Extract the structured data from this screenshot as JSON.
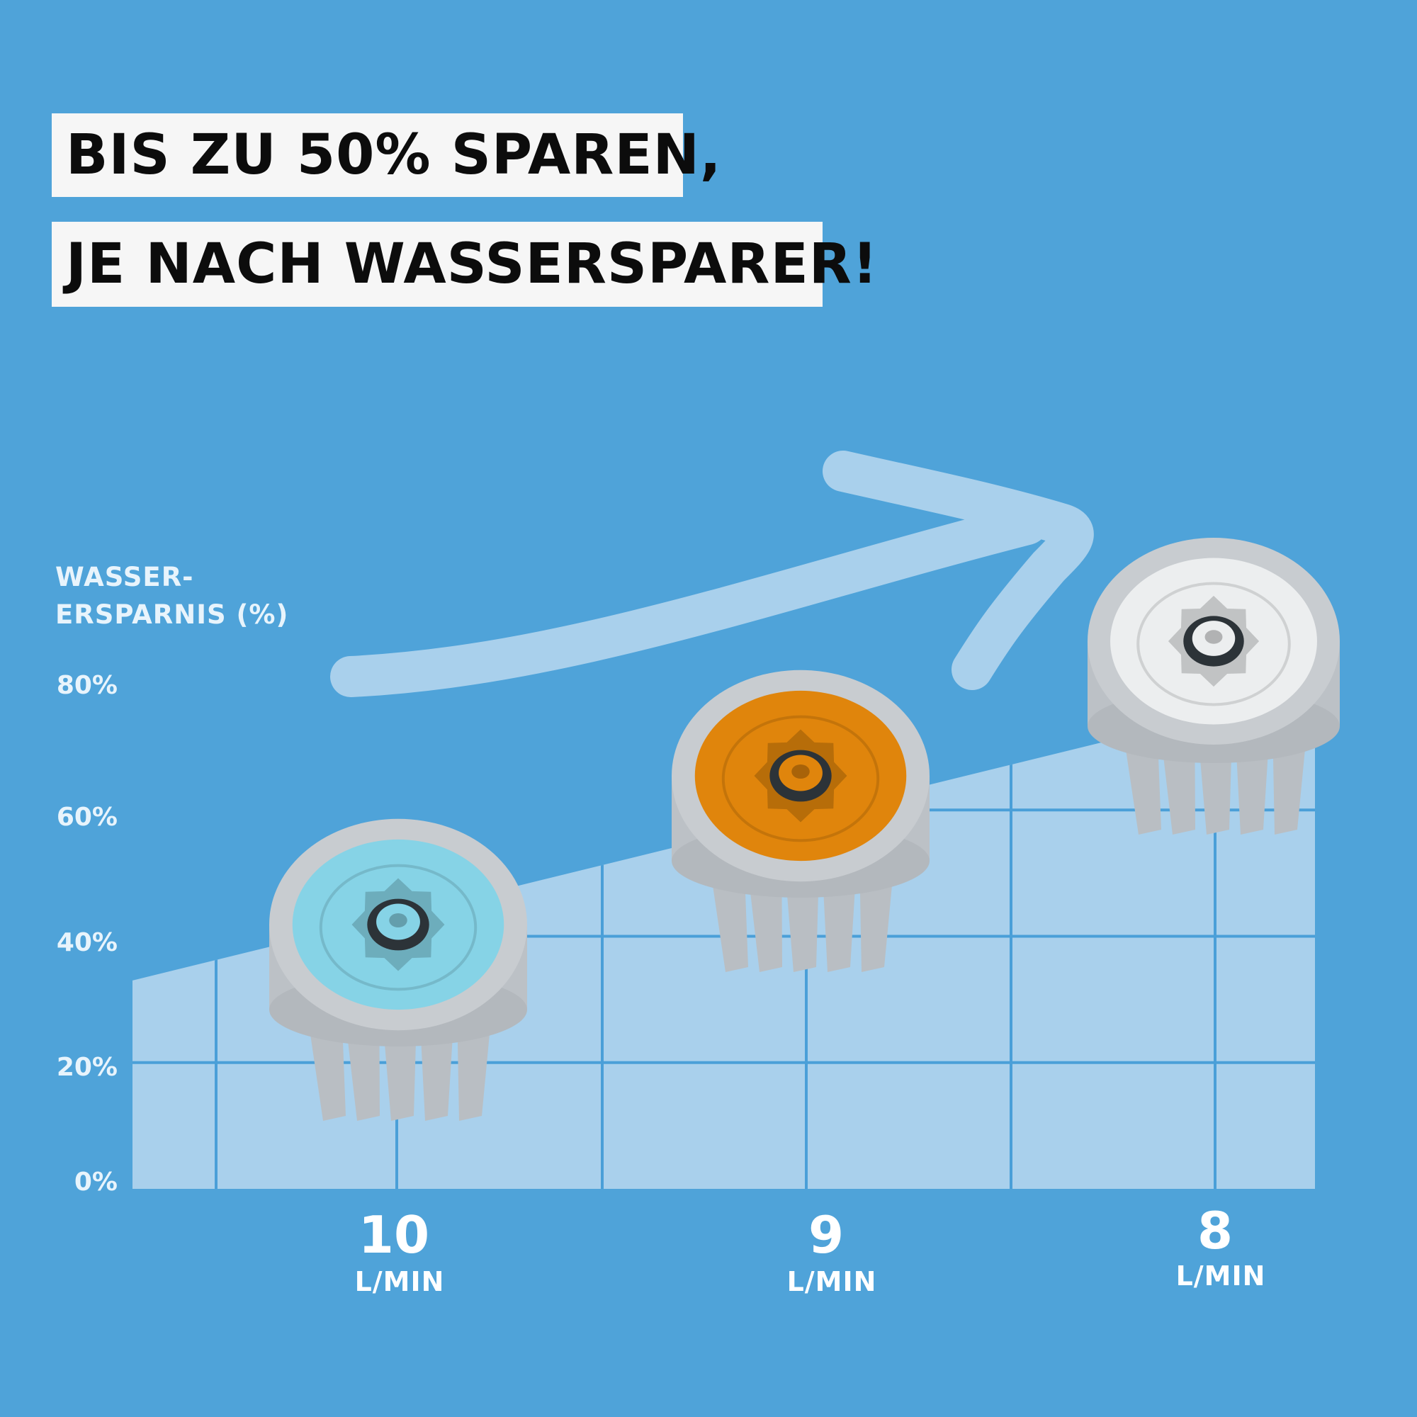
{
  "headline": {
    "line1": "BIS ZU 50% SPAREN,",
    "line2": "JE NACH WASSERSPARER!"
  },
  "colors": {
    "background": "#4fa3d9",
    "area_fill": "#a9d0ec",
    "gridline": "#4a9fd8",
    "arrow": "#a9d0ec",
    "product_ring": "#c8ccd0",
    "insert_10": "#86d3e6",
    "insert_9": "#e0850c",
    "insert_8": "#eceeef"
  },
  "chart_data": {
    "type": "area",
    "ylabel": "WASSER-ERSPARNIS (%)",
    "ylabel_lines": [
      "WASSER-",
      "ERSPARNIS (%)"
    ],
    "yticks": [
      "0%",
      "20%",
      "40%",
      "60%",
      "80%"
    ],
    "ylim": [
      0,
      80
    ],
    "grid": true,
    "categories": [
      {
        "value": "10",
        "unit": "L/MIN"
      },
      {
        "value": "9",
        "unit": "L/MIN"
      },
      {
        "value": "8",
        "unit": "L/MIN"
      }
    ],
    "area_start": 33,
    "area_end": 79,
    "products": [
      {
        "flow": "10",
        "insert_color": "#86d3e6"
      },
      {
        "flow": "9",
        "insert_color": "#e0850c"
      },
      {
        "flow": "8",
        "insert_color": "#eceeef"
      }
    ]
  }
}
